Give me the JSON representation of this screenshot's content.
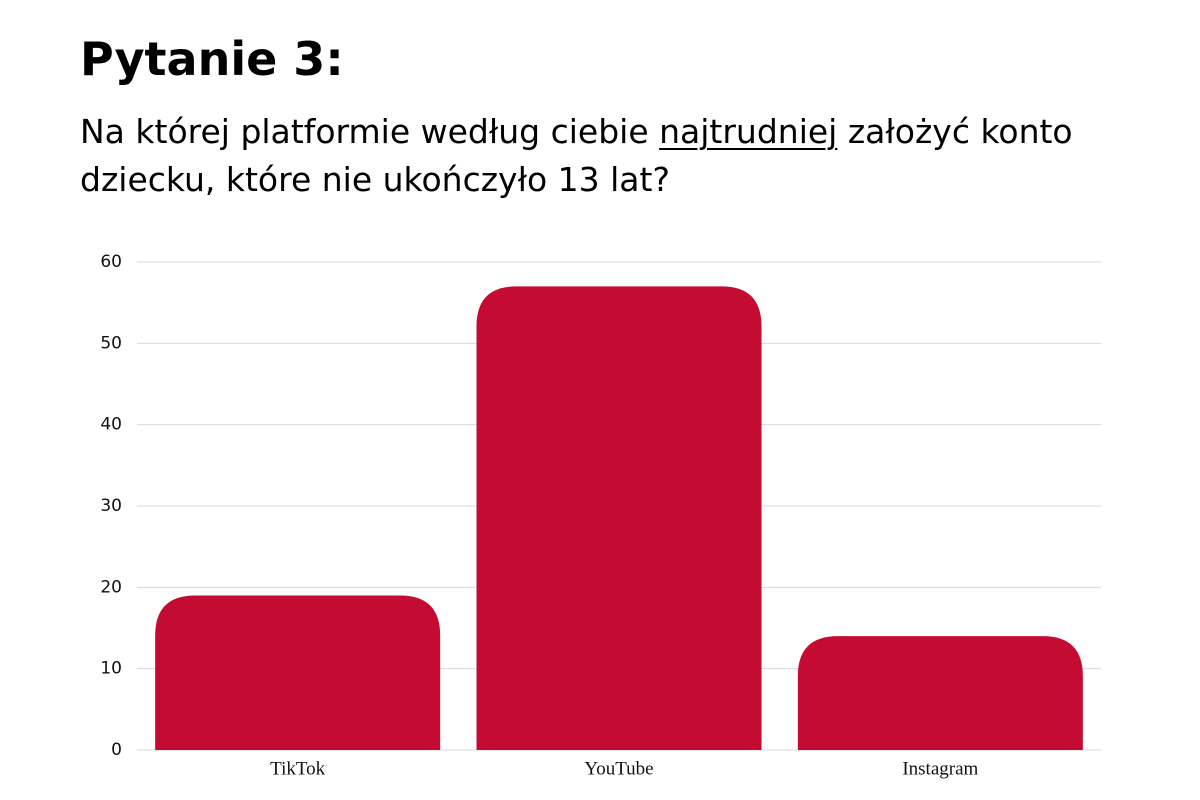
{
  "chart_data": {
    "type": "bar",
    "title": "Pytanie 3:",
    "subtitle_parts": [
      "Na której platformie według ciebie",
      "najtrudniej",
      "założyć konto dziecku, które nie ukończyło 13 lat?"
    ],
    "categories": [
      "TikTok",
      "YouTube",
      "Instagram"
    ],
    "values": [
      19,
      57,
      14
    ],
    "color": "#c40c33",
    "ylim": [
      0,
      60
    ],
    "yticks": [
      0,
      10,
      20,
      30,
      40,
      50,
      60
    ],
    "grid": true
  }
}
